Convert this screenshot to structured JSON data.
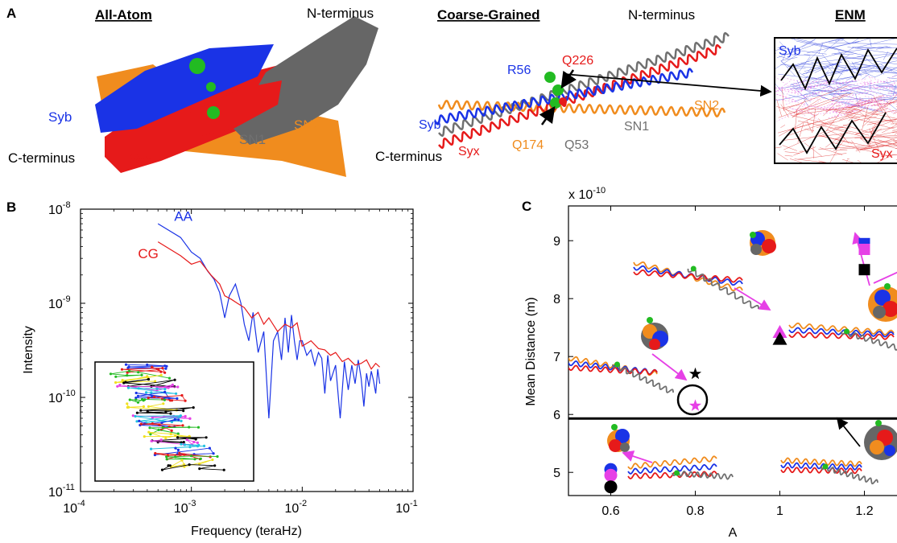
{
  "panel_a": {
    "letter": "A",
    "all_atom": {
      "title": "All-Atom",
      "labels": {
        "n_term": "N-terminus",
        "c_term": "C-terminus",
        "syb": "Syb",
        "syx": "Syx",
        "sn1": "SN1",
        "sn2": "SN2"
      }
    },
    "coarse_grained": {
      "title": "Coarse-Grained",
      "labels": {
        "n_term": "N-terminus",
        "c_term": "C-terminus",
        "syb": "Syb",
        "syx": "Syx",
        "sn1": "SN1",
        "sn2": "SN2",
        "r56": "R56",
        "q226": "Q226",
        "q174": "Q174",
        "q53": "Q53"
      }
    },
    "enm": {
      "title": "ENM",
      "syb": "Syb",
      "syx": "Syx"
    }
  },
  "panel_b": {
    "letter": "B",
    "inset_note": ""
  },
  "panel_c": {
    "letter": "C",
    "exponent": "x 10",
    "exponent_power": "-10"
  },
  "colors": {
    "syb": "#1a33e6",
    "syx": "#e61a1a",
    "sn1": "#707070",
    "sn2": "#f08c1e",
    "magenta": "#e640e6",
    "green": "#22bb22"
  },
  "chart_data": [
    {
      "type": "line",
      "panel": "B",
      "xlabel": "Frequency (teraHz)",
      "ylabel": "Intensity",
      "xscale": "log",
      "yscale": "log",
      "xlim": [
        0.0001,
        0.1
      ],
      "ylim": [
        1e-11,
        1e-08
      ],
      "xticks": [
        "10-4",
        "10-3",
        "10-2",
        "10-1"
      ],
      "yticks": [
        "10-11",
        "10-10",
        "10-9",
        "10-8"
      ],
      "series": [
        {
          "name": "AA",
          "color": "#1a33e6",
          "x": [
            0.0005,
            0.0008,
            0.001,
            0.0012,
            0.0014,
            0.0016,
            0.0018,
            0.002,
            0.0022,
            0.0025,
            0.0028,
            0.003,
            0.0033,
            0.0036,
            0.004,
            0.0045,
            0.005,
            0.0055,
            0.006,
            0.0065,
            0.007,
            0.0075,
            0.008,
            0.0085,
            0.009,
            0.0095,
            0.01,
            0.011,
            0.012,
            0.013,
            0.014,
            0.015,
            0.016,
            0.017,
            0.018,
            0.02,
            0.022,
            0.024,
            0.026,
            0.028,
            0.03,
            0.032,
            0.034,
            0.036,
            0.038,
            0.04,
            0.042,
            0.044,
            0.046,
            0.048,
            0.05
          ],
          "y": [
            7e-09,
            5e-09,
            3.5e-09,
            3e-09,
            2.2e-09,
            1.8e-09,
            1.3e-09,
            7e-10,
            1.2e-09,
            1.6e-09,
            1e-09,
            6e-10,
            4e-10,
            8e-10,
            3e-10,
            5e-10,
            6e-11,
            4e-10,
            5e-10,
            2.5e-10,
            7e-10,
            3e-10,
            7.5e-10,
            4e-10,
            2.5e-10,
            4e-10,
            4e-10,
            2.8e-10,
            3.2e-10,
            2.2e-10,
            3e-10,
            2.6e-10,
            1.1e-10,
            2.8e-10,
            1.5e-10,
            2.2e-10,
            6e-11,
            2.4e-10,
            1.2e-10,
            2.2e-10,
            1.4e-10,
            2.5e-10,
            1.6e-10,
            8e-11,
            1.8e-10,
            1.3e-10,
            1.9e-10,
            1.5e-10,
            1.1e-10,
            2e-10,
            1.4e-10
          ]
        },
        {
          "name": "CG",
          "color": "#e61a1a",
          "x": [
            0.0005,
            0.0008,
            0.001,
            0.0012,
            0.0015,
            0.0018,
            0.002,
            0.0023,
            0.0026,
            0.003,
            0.0035,
            0.004,
            0.0045,
            0.005,
            0.006,
            0.007,
            0.008,
            0.009,
            0.01,
            0.012,
            0.014,
            0.016,
            0.018,
            0.02,
            0.023,
            0.026,
            0.03,
            0.034,
            0.038,
            0.042,
            0.046,
            0.05
          ],
          "y": [
            4.5e-09,
            3.2e-09,
            2.6e-09,
            2.8e-09,
            2e-09,
            1.6e-09,
            1.2e-09,
            1.1e-09,
            1e-09,
            9e-10,
            7e-10,
            8e-10,
            6e-10,
            7e-10,
            5e-10,
            6e-10,
            5.5e-10,
            6.2e-10,
            3.5e-10,
            4e-10,
            3.3e-10,
            3.2e-10,
            2.8e-10,
            3e-10,
            2.4e-10,
            2.6e-10,
            2.2e-10,
            2.3e-10,
            2.5e-10,
            2e-10,
            2.3e-10,
            2.1e-10
          ]
        }
      ]
    },
    {
      "type": "scatter",
      "panel": "C",
      "xlabel": "A",
      "ylabel": "Mean Distance (m)",
      "xlim": [
        0.5,
        1.3
      ],
      "ylim": [
        4.6,
        9.6
      ],
      "xticks": [
        "0.6",
        "0.8",
        "1",
        "1.2"
      ],
      "yticks": [
        "5",
        "6",
        "7",
        "8",
        "9"
      ],
      "threshold_y": 5.93,
      "points": [
        {
          "x": 0.6,
          "y": 5.05,
          "marker": "circle",
          "color": "#1a33e6"
        },
        {
          "x": 0.6,
          "y": 4.95,
          "marker": "circle",
          "color": "#e640e6"
        },
        {
          "x": 0.6,
          "y": 4.75,
          "marker": "circle",
          "color": "#000000"
        },
        {
          "x": 0.8,
          "y": 6.7,
          "marker": "star",
          "color": "#000000"
        },
        {
          "x": 0.8,
          "y": 6.15,
          "marker": "star",
          "color": "#e640e6"
        },
        {
          "x": 1.0,
          "y": 7.42,
          "marker": "triangle",
          "color": "#e640e6"
        },
        {
          "x": 1.0,
          "y": 7.3,
          "marker": "triangle",
          "color": "#000000"
        },
        {
          "x": 1.2,
          "y": 8.95,
          "marker": "square",
          "color": "#1a33e6"
        },
        {
          "x": 1.2,
          "y": 8.85,
          "marker": "square",
          "color": "#e640e6"
        },
        {
          "x": 1.2,
          "y": 8.5,
          "marker": "square",
          "color": "#000000"
        }
      ]
    }
  ]
}
